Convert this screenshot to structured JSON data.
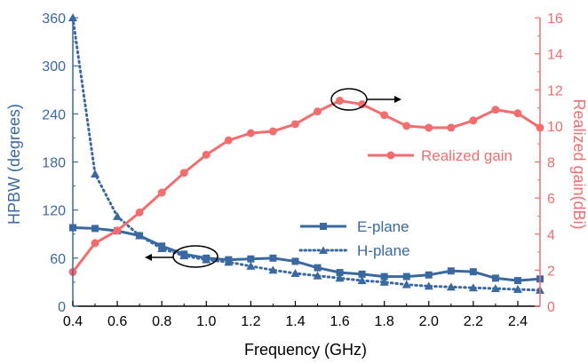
{
  "chart_data": {
    "type": "line",
    "xlabel": "Frequency (GHz)",
    "ylabel_left": "HPBW (degrees)",
    "ylabel_right": "Realized gain(dBi)",
    "xlim": [
      0.4,
      2.5
    ],
    "ylim_left": [
      0,
      360
    ],
    "ylim_right": [
      0,
      16
    ],
    "x_ticks": [
      0.4,
      0.6,
      0.8,
      1.0,
      1.2,
      1.4,
      1.6,
      1.8,
      2.0,
      2.2,
      2.4
    ],
    "x_tick_labels": [
      "0.4",
      "0.6",
      "0.8",
      "1.0",
      "1.2",
      "1.4",
      "1.6",
      "1.8",
      "2.0",
      "2.2",
      "2.4"
    ],
    "y_left_ticks": [
      0,
      60,
      120,
      180,
      240,
      300,
      360
    ],
    "y_left_tick_labels": [
      "0",
      "60",
      "120",
      "180",
      "240",
      "300",
      "360"
    ],
    "y_right_ticks": [
      0,
      2,
      4,
      6,
      8,
      10,
      12,
      14,
      16
    ],
    "y_right_tick_labels": [
      "0",
      "2",
      "4",
      "6",
      "8",
      "10",
      "12",
      "14",
      "16"
    ],
    "grid": false,
    "colors": {
      "hpbw": "#3a68a0",
      "gain": "#f26d6d",
      "annotation": "#000000"
    },
    "series": [
      {
        "name": "E-plane",
        "axis": "left",
        "style": "solid",
        "marker": "square",
        "x": [
          0.4,
          0.5,
          0.6,
          0.7,
          0.8,
          0.9,
          1.0,
          1.1,
          1.2,
          1.3,
          1.4,
          1.5,
          1.6,
          1.7,
          1.8,
          1.9,
          2.0,
          2.1,
          2.2,
          2.3,
          2.4,
          2.5
        ],
        "values": [
          98,
          97,
          94,
          88,
          75,
          65,
          60,
          58,
          59,
          60,
          56,
          48,
          42,
          40,
          37,
          37,
          39,
          44,
          43,
          35,
          32,
          34
        ]
      },
      {
        "name": "H-plane",
        "axis": "left",
        "style": "dotted",
        "marker": "triangle",
        "x": [
          0.4,
          0.5,
          0.6,
          0.7,
          0.8,
          0.9,
          1.0,
          1.1,
          1.2,
          1.3,
          1.4,
          1.5,
          1.6,
          1.7,
          1.8,
          1.9,
          2.0,
          2.1,
          2.2,
          2.3,
          2.4,
          2.5
        ],
        "values": [
          360,
          165,
          112,
          88,
          72,
          63,
          58,
          55,
          50,
          45,
          41,
          38,
          35,
          32,
          30,
          27,
          25,
          24,
          23,
          22,
          21,
          20
        ]
      },
      {
        "name": "Realized gain",
        "axis": "right",
        "style": "solid",
        "marker": "circle",
        "x": [
          0.4,
          0.5,
          0.6,
          0.7,
          0.8,
          0.9,
          1.0,
          1.1,
          1.2,
          1.3,
          1.4,
          1.5,
          1.6,
          1.7,
          1.8,
          1.9,
          2.0,
          2.1,
          2.2,
          2.3,
          2.4,
          2.5
        ],
        "values": [
          1.9,
          3.5,
          4.2,
          5.2,
          6.3,
          7.4,
          8.4,
          9.2,
          9.6,
          9.7,
          10.1,
          10.8,
          11.4,
          11.2,
          10.6,
          10.0,
          9.9,
          9.9,
          10.3,
          10.9,
          10.7,
          9.9
        ]
      }
    ]
  }
}
